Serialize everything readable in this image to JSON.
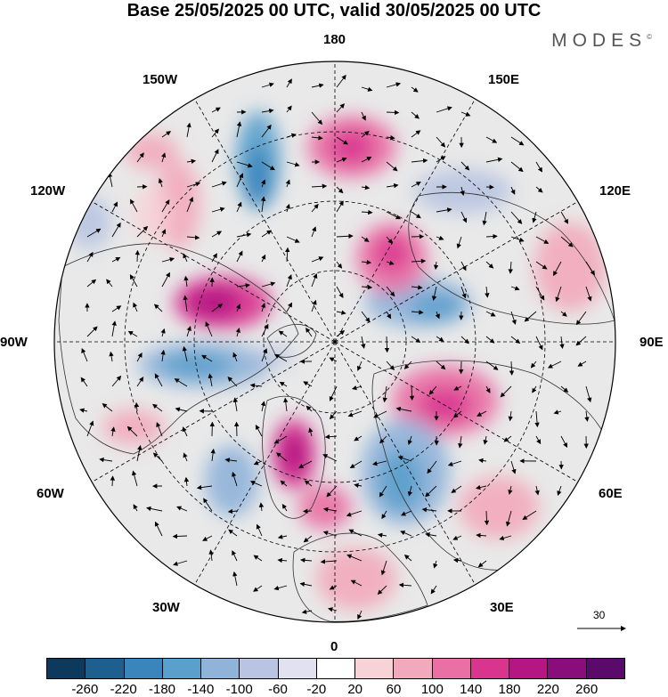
{
  "title": "Base 25/05/2025 00 UTC, valid 30/05/2025 00 UTC",
  "logo": "MODES",
  "logo_mark": "©",
  "map_labels": {
    "top": "180",
    "bottom": "0",
    "left": "90W",
    "right": "90E",
    "upper_left": "150W",
    "upper_right": "150E",
    "mid_upper_left": "120W",
    "mid_upper_right": "120E",
    "mid_lower_left": "60W",
    "mid_lower_right": "60E",
    "lower_left": "30W",
    "lower_right": "30E"
  },
  "reference_vector": "30",
  "colorbar": {
    "colors": [
      "#0d3a5c",
      "#1d5f8e",
      "#3a85bb",
      "#5aa0cc",
      "#8fb3d9",
      "#b8c4e1",
      "#e2e1f0",
      "#ffffff",
      "#f7d2d6",
      "#f2a9bb",
      "#ea6fa4",
      "#d9358f",
      "#b51683",
      "#890d7a",
      "#5a0a6a"
    ],
    "ticks": [
      "-260",
      "-220",
      "-180",
      "-140",
      "-100",
      "-60",
      "-20",
      "20",
      "60",
      "100",
      "140",
      "180",
      "220",
      "260"
    ]
  }
}
